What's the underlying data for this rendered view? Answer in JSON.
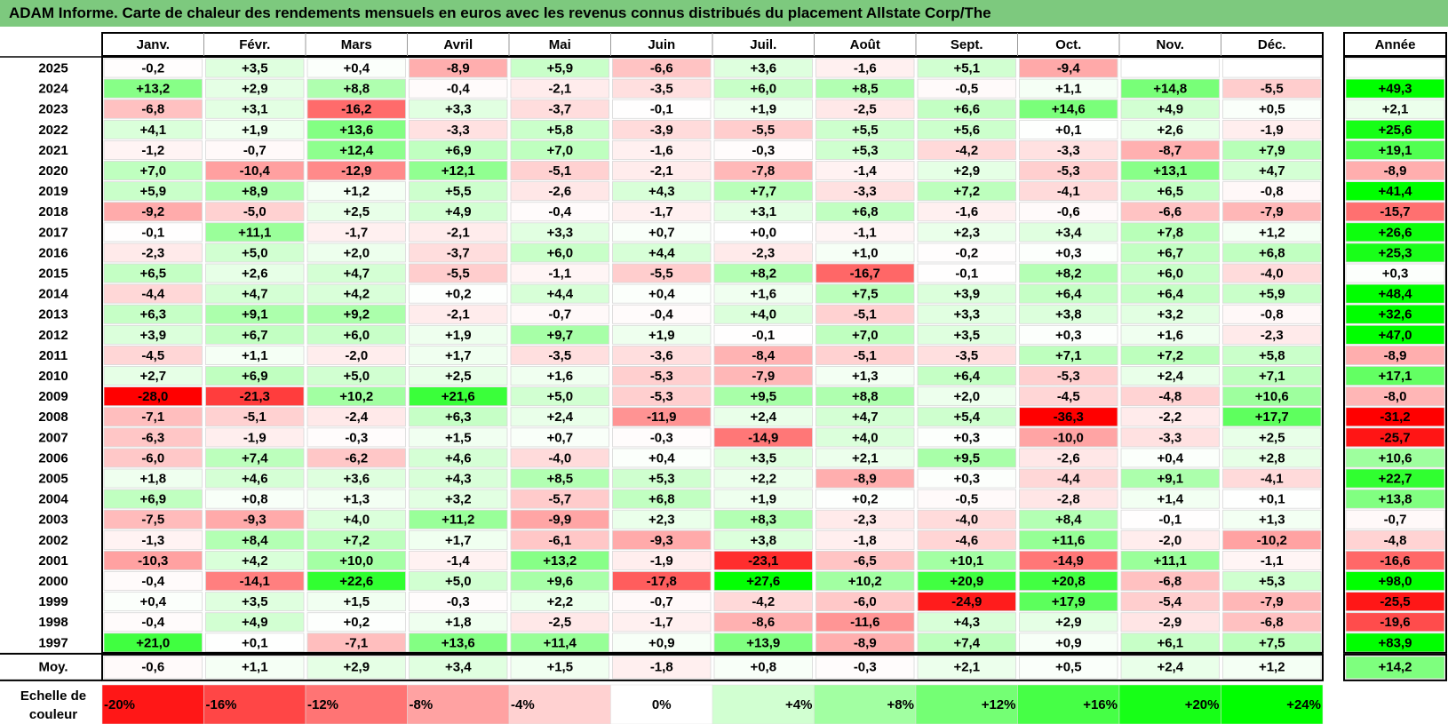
{
  "title": "ADAM Informe. Carte de chaleur des rendements mensuels en euros avec les revenus connus distribués du placement Allstate Corp/The",
  "chart_data": {
    "type": "heatmap",
    "title": "ADAM Informe. Carte de chaleur des rendements mensuels en euros avec les revenus connus distribués du placement Allstate Corp/The",
    "columns": [
      "Janv.",
      "Févr.",
      "Mars",
      "Avril",
      "Mai",
      "Juin",
      "Juil.",
      "Août",
      "Sept.",
      "Oct.",
      "Nov.",
      "Déc."
    ],
    "annual_label": "Année",
    "rows": [
      {
        "year": "2025",
        "values": [
          "-0,2",
          "+3,5",
          "+0,4",
          "-8,9",
          "+5,9",
          "-6,6",
          "+3,6",
          "-1,6",
          "+5,1",
          "-9,4",
          "",
          ""
        ],
        "annual": ""
      },
      {
        "year": "2024",
        "values": [
          "+13,2",
          "+2,9",
          "+8,8",
          "-0,4",
          "-2,1",
          "-3,5",
          "+6,0",
          "+8,5",
          "-0,5",
          "+1,1",
          "+14,8",
          "-5,5"
        ],
        "annual": "+49,3"
      },
      {
        "year": "2023",
        "values": [
          "-6,8",
          "+3,1",
          "-16,2",
          "+3,3",
          "-3,7",
          "-0,1",
          "+1,9",
          "-2,5",
          "+6,6",
          "+14,6",
          "+4,9",
          "+0,5"
        ],
        "annual": "+2,1"
      },
      {
        "year": "2022",
        "values": [
          "+4,1",
          "+1,9",
          "+13,6",
          "-3,3",
          "+5,8",
          "-3,9",
          "-5,5",
          "+5,5",
          "+5,6",
          "+0,1",
          "+2,6",
          "-1,9"
        ],
        "annual": "+25,6"
      },
      {
        "year": "2021",
        "values": [
          "-1,2",
          "-0,7",
          "+12,4",
          "+6,9",
          "+7,0",
          "-1,6",
          "-0,3",
          "+5,3",
          "-4,2",
          "-3,3",
          "-8,7",
          "+7,9"
        ],
        "annual": "+19,1"
      },
      {
        "year": "2020",
        "values": [
          "+7,0",
          "-10,4",
          "-12,9",
          "+12,1",
          "-5,1",
          "-2,1",
          "-7,8",
          "-1,4",
          "+2,9",
          "-5,3",
          "+13,1",
          "+4,7"
        ],
        "annual": "-8,9"
      },
      {
        "year": "2019",
        "values": [
          "+5,9",
          "+8,9",
          "+1,2",
          "+5,5",
          "-2,6",
          "+4,3",
          "+7,7",
          "-3,3",
          "+7,2",
          "-4,1",
          "+6,5",
          "-0,8"
        ],
        "annual": "+41,4"
      },
      {
        "year": "2018",
        "values": [
          "-9,2",
          "-5,0",
          "+2,5",
          "+4,9",
          "-0,4",
          "-1,7",
          "+3,1",
          "+6,8",
          "-1,6",
          "-0,6",
          "-6,6",
          "-7,9"
        ],
        "annual": "-15,7"
      },
      {
        "year": "2017",
        "values": [
          "-0,1",
          "+11,1",
          "-1,7",
          "-2,1",
          "+3,3",
          "+0,7",
          "+0,0",
          "-1,1",
          "+2,3",
          "+3,4",
          "+7,8",
          "+1,2"
        ],
        "annual": "+26,6"
      },
      {
        "year": "2016",
        "values": [
          "-2,3",
          "+5,0",
          "+2,0",
          "-3,7",
          "+6,0",
          "+4,4",
          "-2,3",
          "+1,0",
          "-0,2",
          "+0,3",
          "+6,7",
          "+6,8"
        ],
        "annual": "+25,3"
      },
      {
        "year": "2015",
        "values": [
          "+6,5",
          "+2,6",
          "+4,7",
          "-5,5",
          "-1,1",
          "-5,5",
          "+8,2",
          "-16,7",
          "-0,1",
          "+8,2",
          "+6,0",
          "-4,0"
        ],
        "annual": "+0,3"
      },
      {
        "year": "2014",
        "values": [
          "-4,4",
          "+4,7",
          "+4,2",
          "+0,2",
          "+4,4",
          "+0,4",
          "+1,6",
          "+7,5",
          "+3,9",
          "+6,4",
          "+6,4",
          "+5,9"
        ],
        "annual": "+48,4"
      },
      {
        "year": "2013",
        "values": [
          "+6,3",
          "+9,1",
          "+9,2",
          "-2,1",
          "-0,7",
          "-0,4",
          "+4,0",
          "-5,1",
          "+3,3",
          "+3,8",
          "+3,2",
          "-0,8"
        ],
        "annual": "+32,6"
      },
      {
        "year": "2012",
        "values": [
          "+3,9",
          "+6,7",
          "+6,0",
          "+1,9",
          "+9,7",
          "+1,9",
          "-0,1",
          "+7,0",
          "+3,5",
          "+0,3",
          "+1,6",
          "-2,3"
        ],
        "annual": "+47,0"
      },
      {
        "year": "2011",
        "values": [
          "-4,5",
          "+1,1",
          "-2,0",
          "+1,7",
          "-3,5",
          "-3,6",
          "-8,4",
          "-5,1",
          "-3,5",
          "+7,1",
          "+7,2",
          "+5,8"
        ],
        "annual": "-8,9"
      },
      {
        "year": "2010",
        "values": [
          "+2,7",
          "+6,9",
          "+5,0",
          "+2,5",
          "+1,6",
          "-5,3",
          "-7,9",
          "+1,3",
          "+6,4",
          "-5,3",
          "+2,4",
          "+7,1"
        ],
        "annual": "+17,1"
      },
      {
        "year": "2009",
        "values": [
          "-28,0",
          "-21,3",
          "+10,2",
          "+21,6",
          "+5,0",
          "-5,3",
          "+9,5",
          "+8,8",
          "+2,0",
          "-4,5",
          "-4,8",
          "+10,6"
        ],
        "annual": "-8,0"
      },
      {
        "year": "2008",
        "values": [
          "-7,1",
          "-5,1",
          "-2,4",
          "+6,3",
          "+2,4",
          "-11,9",
          "+2,4",
          "+4,7",
          "+5,4",
          "-36,3",
          "-2,2",
          "+17,7"
        ],
        "annual": "-31,2"
      },
      {
        "year": "2007",
        "values": [
          "-6,3",
          "-1,9",
          "-0,3",
          "+1,5",
          "+0,7",
          "-0,3",
          "-14,9",
          "+4,0",
          "+0,3",
          "-10,0",
          "-3,3",
          "+2,5"
        ],
        "annual": "-25,7"
      },
      {
        "year": "2006",
        "values": [
          "-6,0",
          "+7,4",
          "-6,2",
          "+4,6",
          "-4,0",
          "+0,4",
          "+3,5",
          "+2,1",
          "+9,5",
          "-2,6",
          "+0,4",
          "+2,8"
        ],
        "annual": "+10,6"
      },
      {
        "year": "2005",
        "values": [
          "+1,8",
          "+4,6",
          "+3,6",
          "+4,3",
          "+8,5",
          "+5,3",
          "+2,2",
          "-8,9",
          "+0,3",
          "-4,4",
          "+9,1",
          "-4,1"
        ],
        "annual": "+22,7"
      },
      {
        "year": "2004",
        "values": [
          "+6,9",
          "+0,8",
          "+1,3",
          "+3,2",
          "-5,7",
          "+6,8",
          "+1,9",
          "+0,2",
          "-0,5",
          "-2,8",
          "+1,4",
          "+0,1"
        ],
        "annual": "+13,8"
      },
      {
        "year": "2003",
        "values": [
          "-7,5",
          "-9,3",
          "+4,0",
          "+11,2",
          "-9,9",
          "+2,3",
          "+8,3",
          "-2,3",
          "-4,0",
          "+8,4",
          "-0,1",
          "+1,3"
        ],
        "annual": "-0,7"
      },
      {
        "year": "2002",
        "values": [
          "-1,3",
          "+8,4",
          "+7,2",
          "+1,7",
          "-6,1",
          "-9,3",
          "+3,8",
          "-1,8",
          "-4,6",
          "+11,6",
          "-2,0",
          "-10,2"
        ],
        "annual": "-4,8"
      },
      {
        "year": "2001",
        "values": [
          "-10,3",
          "+4,2",
          "+10,0",
          "-1,4",
          "+13,2",
          "-1,9",
          "-23,1",
          "-6,5",
          "+10,1",
          "-14,9",
          "+11,1",
          "-1,1"
        ],
        "annual": "-16,6"
      },
      {
        "year": "2000",
        "values": [
          "-0,4",
          "-14,1",
          "+22,6",
          "+5,0",
          "+9,6",
          "-17,8",
          "+27,6",
          "+10,2",
          "+20,9",
          "+20,8",
          "-6,8",
          "+5,3"
        ],
        "annual": "+98,0"
      },
      {
        "year": "1999",
        "values": [
          "+0,4",
          "+3,5",
          "+1,5",
          "-0,3",
          "+2,2",
          "-0,7",
          "-4,2",
          "-6,0",
          "-24,9",
          "+17,9",
          "-5,4",
          "-7,9"
        ],
        "annual": "-25,5"
      },
      {
        "year": "1998",
        "values": [
          "-0,4",
          "+4,9",
          "+0,2",
          "+1,8",
          "-2,5",
          "-1,7",
          "-8,6",
          "-11,6",
          "+4,3",
          "+2,9",
          "-2,9",
          "-6,8"
        ],
        "annual": "-19,6"
      },
      {
        "year": "1997",
        "values": [
          "+21,0",
          "+0,1",
          "-7,1",
          "+13,6",
          "+11,4",
          "+0,9",
          "+13,9",
          "-8,9",
          "+7,4",
          "+0,9",
          "+6,1",
          "+7,5"
        ],
        "annual": "+83,9"
      }
    ],
    "average": {
      "label": "Moy.",
      "values": [
        "-0,6",
        "+1,1",
        "+2,9",
        "+3,4",
        "+1,5",
        "-1,8",
        "+0,8",
        "-0,3",
        "+2,1",
        "+0,5",
        "+2,4",
        "+1,2"
      ],
      "annual": "+14,2"
    },
    "legend": {
      "label_line1": "Echelle de",
      "label_line2": "couleur",
      "stops": [
        "-20%",
        "-16%",
        "-12%",
        "-8%",
        "-4%",
        "0%",
        "+4%",
        "+8%",
        "+12%",
        "+16%",
        "+20%",
        "+24%"
      ]
    },
    "colors": {
      "negative_max": "#ff0000",
      "neutral": "#ffffff",
      "positive_max": "#00ff00",
      "title_bar": "#7dc97e"
    }
  }
}
